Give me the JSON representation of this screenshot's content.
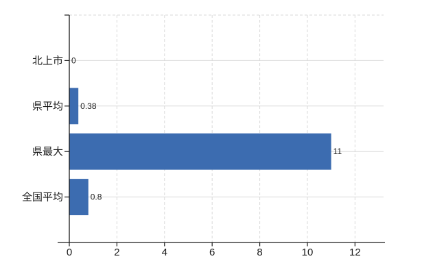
{
  "chart_data": {
    "type": "bar",
    "orientation": "horizontal",
    "categories": [
      "北上市",
      "県平均",
      "県最大",
      "全国平均"
    ],
    "values": [
      0,
      0.38,
      11,
      0.8
    ],
    "value_labels": [
      "0",
      "0.38",
      "11",
      "0.8"
    ],
    "xlim": [
      0,
      13.2
    ],
    "xticks": [
      0,
      2,
      4,
      6,
      8,
      10,
      12
    ],
    "xtick_labels": [
      "0",
      "2",
      "4",
      "6",
      "8",
      "10",
      "12"
    ],
    "grid": {
      "vertical_style": "dashed",
      "horizontal_style": "solid",
      "top_border_style": "dashed"
    },
    "legend": "none",
    "colors": {
      "bar": "#3c6cb0",
      "gridline": "#d9d9d9",
      "axis": "#1a1a1a",
      "text": "#1a1a1a",
      "background": "#ffffff"
    }
  }
}
